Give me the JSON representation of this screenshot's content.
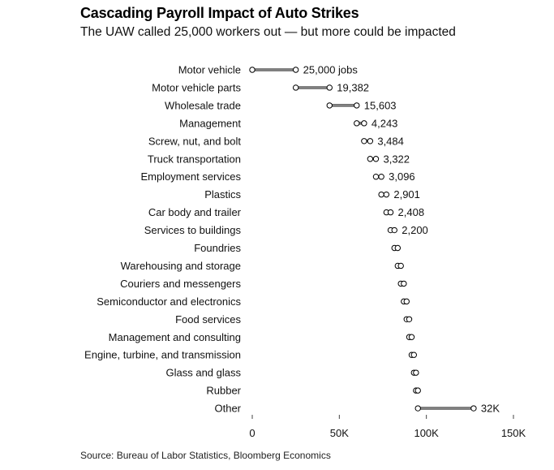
{
  "chart_data": {
    "type": "dumbbell",
    "title": "Cascading Payroll Impact of Auto Strikes",
    "subtitle": "The UAW called 25,000 workers out — but more could be impacted",
    "source": "Source: Bureau of Labor Statistics, Bloomberg Economics",
    "xlim": [
      0,
      150000
    ],
    "x_ticks": [
      {
        "value": 0,
        "label": "0"
      },
      {
        "value": 50000,
        "label": "50K"
      },
      {
        "value": 100000,
        "label": "100K"
      },
      {
        "value": 150000,
        "label": "150K"
      }
    ],
    "rows": [
      {
        "category": "Motor vehicle",
        "value": 25000,
        "label": "25,000 jobs"
      },
      {
        "category": "Motor vehicle parts",
        "value": 19382,
        "label": "19,382"
      },
      {
        "category": "Wholesale trade",
        "value": 15603,
        "label": "15,603"
      },
      {
        "category": "Management",
        "value": 4243,
        "label": "4,243"
      },
      {
        "category": "Screw, nut, and bolt",
        "value": 3484,
        "label": "3,484"
      },
      {
        "category": "Truck transportation",
        "value": 3322,
        "label": "3,322"
      },
      {
        "category": "Employment services",
        "value": 3096,
        "label": "3,096"
      },
      {
        "category": "Plastics",
        "value": 2901,
        "label": "2,901"
      },
      {
        "category": "Car body and trailer",
        "value": 2408,
        "label": "2,408"
      },
      {
        "category": "Services to buildings",
        "value": 2200,
        "label": "2,200"
      },
      {
        "category": "Foundries",
        "value": 1900,
        "label": ""
      },
      {
        "category": "Warehousing and storage",
        "value": 1800,
        "label": ""
      },
      {
        "category": "Couriers and messengers",
        "value": 1700,
        "label": ""
      },
      {
        "category": "Semiconductor and electronics",
        "value": 1600,
        "label": ""
      },
      {
        "category": "Food services",
        "value": 1500,
        "label": ""
      },
      {
        "category": "Management and consulting",
        "value": 1400,
        "label": ""
      },
      {
        "category": "Engine, turbine, and transmission",
        "value": 1300,
        "label": ""
      },
      {
        "category": "Glass and glass",
        "value": 1200,
        "label": ""
      },
      {
        "category": "Rubber",
        "value": 1100,
        "label": ""
      },
      {
        "category": "Other",
        "value": 32000,
        "label": "32K"
      }
    ],
    "colors": {
      "line": "#000000",
      "marker_fill": "#ffffff"
    }
  }
}
